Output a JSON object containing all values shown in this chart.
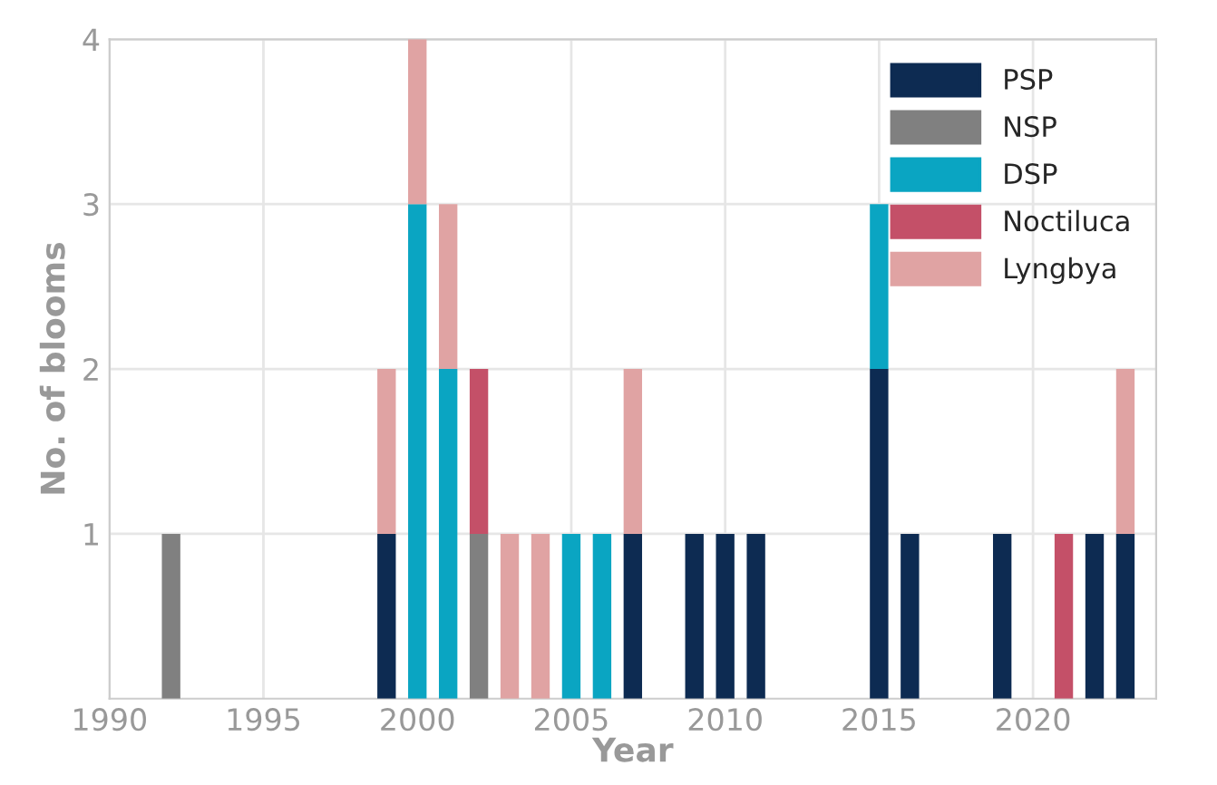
{
  "chart_data": {
    "type": "bar",
    "stacked": true,
    "xlabel": "Year",
    "ylabel": "No. of blooms",
    "x": [
      1992,
      1999,
      2000,
      2001,
      2002,
      2003,
      2004,
      2005,
      2006,
      2007,
      2009,
      2010,
      2011,
      2015,
      2016,
      2019,
      2021,
      2022,
      2023
    ],
    "series": [
      {
        "name": "PSP",
        "color": "#0d2b52",
        "values": [
          0,
          1,
          0,
          0,
          0,
          0,
          0,
          0,
          0,
          1,
          1,
          1,
          1,
          2,
          1,
          1,
          0,
          1,
          1
        ]
      },
      {
        "name": "NSP",
        "color": "#808080",
        "values": [
          1,
          0,
          0,
          0,
          1,
          0,
          0,
          0,
          0,
          0,
          0,
          0,
          0,
          0,
          0,
          0,
          0,
          0,
          0
        ]
      },
      {
        "name": "DSP",
        "color": "#0aa5c2",
        "values": [
          0,
          0,
          3,
          2,
          0,
          0,
          0,
          1,
          1,
          0,
          0,
          0,
          0,
          1,
          0,
          0,
          0,
          0,
          0
        ]
      },
      {
        "name": "Noctiluca",
        "color": "#c45068",
        "values": [
          0,
          0,
          0,
          0,
          1,
          0,
          0,
          0,
          0,
          0,
          0,
          0,
          0,
          0,
          0,
          0,
          1,
          0,
          0
        ]
      },
      {
        "name": "Lyngbya",
        "color": "#e0a3a3",
        "values": [
          0,
          1,
          1,
          1,
          0,
          1,
          1,
          0,
          0,
          1,
          0,
          0,
          0,
          0,
          0,
          0,
          0,
          0,
          1
        ]
      }
    ],
    "xlim": [
      1990,
      2024
    ],
    "xticks": [
      1990,
      1995,
      2000,
      2005,
      2010,
      2015,
      2020
    ],
    "ylim": [
      0,
      4
    ],
    "yticks": [
      1,
      2,
      3,
      4
    ],
    "grid": true,
    "legend": "top right"
  }
}
